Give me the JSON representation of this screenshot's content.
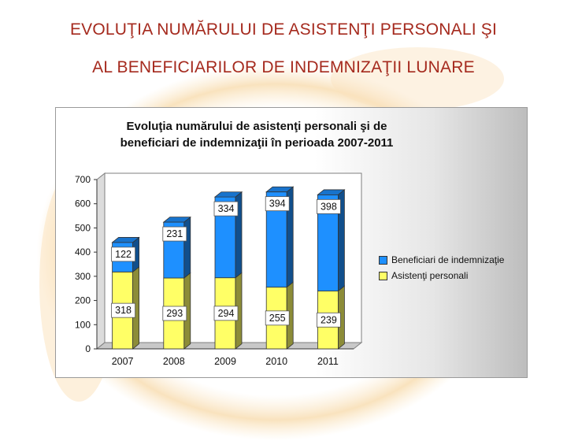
{
  "slide": {
    "title_line1": "EVOLUŢIA NUMĂRULUI DE ASISTENŢI PERSONALI ŞI",
    "title_line2": "AL BENEFICIARILOR DE INDEMNIZAŢII LUNARE"
  },
  "chart_data": {
    "type": "bar",
    "stacked": true,
    "title_line1": "Evoluţia numărului de asistenţi personali şi de",
    "title_line2": "beneficiari de indemnizaţii în perioada 2007-2011",
    "categories": [
      "2007",
      "2008",
      "2009",
      "2010",
      "2011"
    ],
    "series": [
      {
        "name": "Asistenţi personali",
        "values": [
          318,
          293,
          294,
          255,
          239
        ],
        "color": "#ffff66"
      },
      {
        "name": "Beneficiari de indemnizaţie",
        "values": [
          122,
          231,
          334,
          394,
          398
        ],
        "color": "#1e90ff"
      }
    ],
    "legend_order": [
      "Beneficiari de indemnizaţie",
      "Asistenţi personali"
    ],
    "ylim": [
      0,
      700
    ],
    "yticks": [
      0,
      100,
      200,
      300,
      400,
      500,
      600,
      700
    ],
    "grid": false,
    "legend": "right"
  }
}
